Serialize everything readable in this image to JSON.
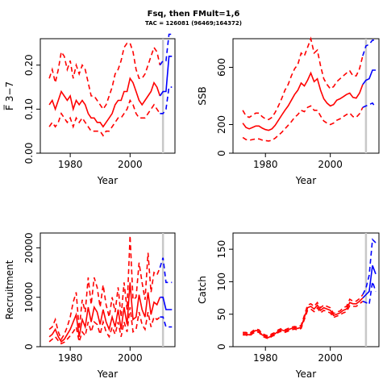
{
  "title": "Fsq, then FMult=1,6",
  "subtitle": "TAC = 126081 (96469;164372)",
  "chart_data": [
    {
      "type": "line",
      "panel": "F",
      "xlabel": "Year",
      "ylabel": "F̅ 3−7",
      "xlim": [
        1970,
        2015
      ],
      "ylim": [
        0,
        0.26
      ],
      "xticks": [
        1980,
        2000
      ],
      "yticks": [
        0.0,
        0.1,
        0.2
      ],
      "ytick_labels": [
        "0.00",
        "0.10",
        "0.20"
      ],
      "vline": 2011,
      "colors": {
        "historic": "#ff0000",
        "forecast": "#0000ff",
        "vline": "#c8c8c8"
      },
      "historic": {
        "years": [
          1973,
          1974,
          1975,
          1976,
          1977,
          1978,
          1979,
          1980,
          1981,
          1982,
          1983,
          1984,
          1985,
          1986,
          1987,
          1988,
          1989,
          1990,
          1991,
          1992,
          1993,
          1994,
          1995,
          1996,
          1997,
          1998,
          1999,
          2000,
          2001,
          2002,
          2003,
          2004,
          2005,
          2006,
          2007,
          2008,
          2009,
          2010
        ],
        "mid": [
          0.11,
          0.12,
          0.1,
          0.12,
          0.14,
          0.13,
          0.12,
          0.13,
          0.1,
          0.12,
          0.11,
          0.12,
          0.11,
          0.09,
          0.08,
          0.08,
          0.07,
          0.07,
          0.06,
          0.07,
          0.08,
          0.09,
          0.11,
          0.12,
          0.12,
          0.14,
          0.14,
          0.17,
          0.16,
          0.14,
          0.12,
          0.11,
          0.12,
          0.13,
          0.14,
          0.16,
          0.15,
          0.13
        ],
        "low": [
          0.06,
          0.07,
          0.06,
          0.07,
          0.09,
          0.08,
          0.07,
          0.08,
          0.06,
          0.08,
          0.07,
          0.08,
          0.07,
          0.06,
          0.05,
          0.05,
          0.05,
          0.05,
          0.04,
          0.05,
          0.05,
          0.06,
          0.07,
          0.08,
          0.08,
          0.09,
          0.1,
          0.12,
          0.11,
          0.09,
          0.08,
          0.08,
          0.08,
          0.09,
          0.1,
          0.11,
          0.1,
          0.09
        ],
        "high": [
          0.17,
          0.19,
          0.16,
          0.19,
          0.23,
          0.22,
          0.19,
          0.21,
          0.17,
          0.2,
          0.18,
          0.2,
          0.19,
          0.16,
          0.13,
          0.13,
          0.12,
          0.11,
          0.1,
          0.11,
          0.13,
          0.15,
          0.18,
          0.19,
          0.21,
          0.24,
          0.25,
          0.25,
          0.23,
          0.19,
          0.17,
          0.17,
          0.18,
          0.2,
          0.22,
          0.24,
          0.23,
          0.2
        ]
      },
      "forecast": {
        "years": [
          2010,
          2011,
          2012,
          2013,
          2014
        ],
        "mid": [
          0.13,
          0.14,
          0.14,
          0.22,
          0.22
        ],
        "low": [
          0.09,
          0.09,
          0.1,
          0.15,
          0.15
        ],
        "high": [
          0.2,
          0.21,
          0.21,
          0.27,
          0.27
        ]
      }
    },
    {
      "type": "line",
      "panel": "SSB",
      "xlabel": "Year",
      "ylabel": "SSB",
      "xlim": [
        1970,
        2015
      ],
      "ylim": [
        0,
        800
      ],
      "xticks": [
        1980,
        2000
      ],
      "yticks": [
        0,
        200,
        600
      ],
      "ytick_labels": [
        "0",
        "200",
        "600"
      ],
      "vline": 2011,
      "colors": {
        "historic": "#ff0000",
        "forecast": "#0000ff",
        "vline": "#c8c8c8"
      },
      "historic": {
        "years": [
          1973,
          1974,
          1975,
          1976,
          1977,
          1978,
          1979,
          1980,
          1981,
          1982,
          1983,
          1984,
          1985,
          1986,
          1987,
          1988,
          1989,
          1990,
          1991,
          1992,
          1993,
          1994,
          1995,
          1996,
          1997,
          1998,
          1999,
          2000,
          2001,
          2002,
          2003,
          2004,
          2005,
          2006,
          2007,
          2008,
          2009,
          2010
        ],
        "mid": [
          210,
          180,
          170,
          180,
          190,
          190,
          175,
          165,
          160,
          170,
          195,
          230,
          265,
          300,
          330,
          370,
          410,
          440,
          490,
          470,
          510,
          560,
          500,
          520,
          440,
          380,
          350,
          330,
          340,
          370,
          380,
          395,
          410,
          420,
          390,
          385,
          420,
          480
        ],
        "low": [
          110,
          95,
          90,
          95,
          100,
          100,
          92,
          88,
          85,
          90,
          105,
          125,
          145,
          170,
          195,
          220,
          250,
          270,
          300,
          290,
          320,
          330,
          300,
          300,
          260,
          225,
          210,
          200,
          210,
          230,
          240,
          255,
          270,
          280,
          255,
          250,
          275,
          320
        ],
        "high": [
          300,
          260,
          250,
          265,
          280,
          280,
          255,
          240,
          235,
          250,
          285,
          330,
          380,
          440,
          480,
          540,
          590,
          620,
          700,
          680,
          740,
          800,
          700,
          720,
          610,
          520,
          480,
          450,
          465,
          500,
          520,
          540,
          560,
          575,
          540,
          540,
          590,
          680
        ]
      },
      "forecast": {
        "years": [
          2010,
          2011,
          2012,
          2013,
          2014
        ],
        "mid": [
          480,
          510,
          520,
          580,
          580
        ],
        "low": [
          320,
          330,
          340,
          350,
          320
        ],
        "high": [
          680,
          750,
          760,
          790,
          790
        ]
      }
    },
    {
      "type": "line",
      "panel": "Recruitment",
      "xlabel": "Year",
      "ylabel": "Recruitment",
      "xlim": [
        1970,
        2015
      ],
      "ylim": [
        0,
        23000
      ],
      "xticks": [
        1980,
        2000
      ],
      "yticks": [
        0,
        10000,
        20000
      ],
      "ytick_labels": [
        "0",
        "10000",
        "20000"
      ],
      "vline": 2011,
      "colors": {
        "historic": "#ff0000",
        "forecast": "#0000ff",
        "vline": "#c8c8c8"
      },
      "historic": {
        "years": [
          1973,
          1974,
          1975,
          1976,
          1977,
          1978,
          1979,
          1980,
          1981,
          1982,
          1983,
          1984,
          1985,
          1986,
          1987,
          1988,
          1989,
          1990,
          1991,
          1992,
          1993,
          1994,
          1995,
          1996,
          1997,
          1998,
          1999,
          2000,
          2001,
          2002,
          2003,
          2004,
          2005,
          2006,
          2007,
          2008,
          2009,
          2010
        ],
        "mid": [
          2000,
          2500,
          3500,
          2000,
          1000,
          1500,
          2500,
          3500,
          5000,
          6500,
          2000,
          5500,
          4000,
          8000,
          5000,
          8000,
          7000,
          4500,
          7500,
          5000,
          3500,
          6000,
          4000,
          7500,
          3500,
          8000,
          4500,
          13000,
          5500,
          6000,
          10500,
          7500,
          6000,
          11000,
          6500,
          9000,
          8500,
          10000
        ],
        "low": [
          1000,
          1500,
          2000,
          1200,
          600,
          900,
          1500,
          2200,
          3000,
          4000,
          1000,
          3000,
          2200,
          5000,
          3000,
          5000,
          4500,
          2500,
          5000,
          3000,
          2000,
          4000,
          2500,
          5000,
          2000,
          5000,
          3000,
          8000,
          3000,
          3500,
          7000,
          4500,
          3500,
          7000,
          4000,
          6000,
          5500,
          6000
        ],
        "high": [
          3500,
          4000,
          5500,
          3000,
          1500,
          2500,
          4000,
          6000,
          9000,
          11000,
          3500,
          9500,
          7000,
          14000,
          8500,
          14000,
          12000,
          8000,
          12500,
          8500,
          6000,
          10000,
          7000,
          12000,
          6000,
          13000,
          7500,
          22500,
          9500,
          10000,
          17000,
          13000,
          9500,
          19000,
          11000,
          15000,
          14500,
          16000
        ]
      },
      "forecast": {
        "years": [
          2010,
          2011,
          2012,
          2013,
          2014
        ],
        "mid": [
          10000,
          10000,
          7500,
          7500,
          7500
        ],
        "low": [
          6000,
          6000,
          4000,
          4000,
          4000
        ],
        "high": [
          16000,
          18000,
          13000,
          13000,
          13000
        ]
      }
    },
    {
      "type": "line",
      "panel": "Catch",
      "xlabel": "Year",
      "ylabel": "Catch",
      "xlim": [
        1970,
        2015
      ],
      "ylim": [
        0,
        175
      ],
      "xticks": [
        1980,
        2000
      ],
      "yticks": [
        0,
        50,
        100,
        150
      ],
      "ytick_labels": [
        "0",
        "50",
        "100",
        "150"
      ],
      "vline": 2011,
      "colors": {
        "historic": "#ff0000",
        "forecast": "#0000ff",
        "vline": "#c8c8c8"
      },
      "historic": {
        "years": [
          1973,
          1974,
          1975,
          1976,
          1977,
          1978,
          1979,
          1980,
          1981,
          1982,
          1983,
          1984,
          1985,
          1986,
          1987,
          1988,
          1989,
          1990,
          1991,
          1992,
          1993,
          1994,
          1995,
          1996,
          1997,
          1998,
          1999,
          2000,
          2001,
          2002,
          2003,
          2004,
          2005,
          2006,
          2007,
          2008,
          2009,
          2010
        ],
        "mid": [
          20,
          20,
          18,
          22,
          25,
          24,
          18,
          16,
          14,
          18,
          20,
          24,
          26,
          24,
          26,
          28,
          29,
          28,
          30,
          45,
          60,
          62,
          58,
          64,
          56,
          60,
          58,
          56,
          48,
          50,
          52,
          56,
          58,
          68,
          66,
          66,
          70,
          75
        ],
        "low": [
          18,
          18,
          16,
          20,
          23,
          22,
          16,
          14,
          12,
          16,
          18,
          22,
          24,
          22,
          24,
          26,
          27,
          26,
          28,
          42,
          56,
          58,
          54,
          60,
          52,
          56,
          54,
          52,
          45,
          47,
          49,
          52,
          54,
          63,
          62,
          62,
          66,
          70
        ],
        "high": [
          22,
          22,
          20,
          24,
          27,
          26,
          20,
          18,
          16,
          20,
          22,
          26,
          28,
          26,
          28,
          30,
          31,
          30,
          33,
          48,
          64,
          66,
          62,
          68,
          60,
          64,
          62,
          60,
          51,
          53,
          55,
          60,
          62,
          73,
          70,
          70,
          74,
          80
        ]
      },
      "forecast": {
        "years": [
          2010,
          2011,
          2012,
          2013,
          2014
        ],
        "mid": [
          75,
          80,
          85,
          125,
          112
        ],
        "low": [
          70,
          68,
          65,
          100,
          85
        ],
        "high": [
          80,
          90,
          110,
          165,
          160
        ]
      }
    }
  ]
}
